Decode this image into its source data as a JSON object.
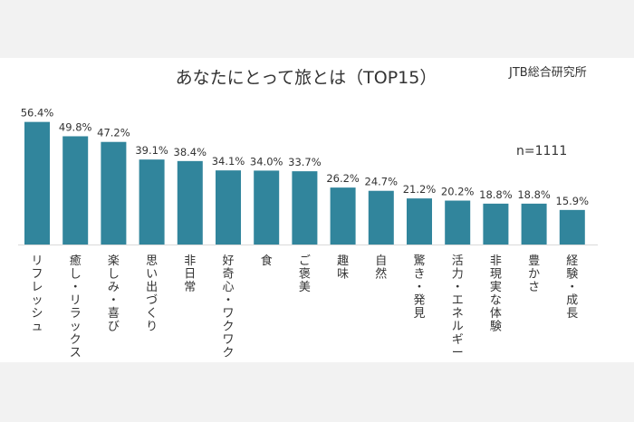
{
  "chart_data": {
    "type": "bar",
    "title": "あなたにとって旅とは（TOP15）",
    "source": "JTB総合研究所",
    "note": "n=1111",
    "categories": [
      "リフレッシュ",
      "癒し・リラックス",
      "楽しみ・喜び",
      "思い出づくり",
      "非日常",
      "好奇心・ワクワク",
      "食",
      "ご褒美",
      "趣味",
      "自然",
      "驚き・発見",
      "活力・エネルギー",
      "非現実な体験",
      "豊かさ",
      "経験・成長"
    ],
    "values": [
      56.4,
      49.8,
      47.2,
      39.1,
      38.4,
      34.1,
      34.0,
      33.7,
      26.2,
      24.7,
      21.2,
      20.2,
      18.8,
      18.8,
      15.9
    ],
    "value_labels": [
      "56.4%",
      "49.8%",
      "47.2%",
      "39.1%",
      "38.4%",
      "34.1%",
      "34.0%",
      "33.7%",
      "26.2%",
      "24.7%",
      "21.2%",
      "20.2%",
      "18.8%",
      "18.8%",
      "15.9%"
    ],
    "ylim": [
      0,
      60
    ],
    "grid": false,
    "bar_color": "#31859c"
  }
}
